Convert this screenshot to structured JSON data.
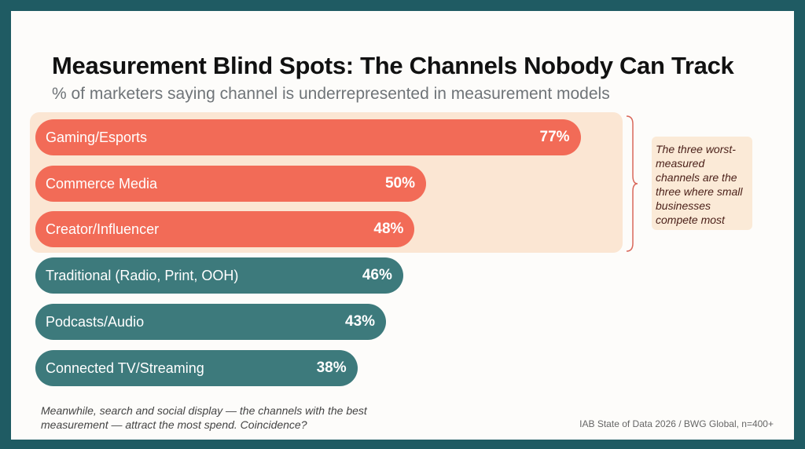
{
  "chart_data": {
    "type": "bar",
    "orientation": "horizontal",
    "title": "Measurement Blind Spots: The Channels Nobody Can Track",
    "subtitle": "% of marketers saying channel is underrepresented in measurement models",
    "categories": [
      "Gaming/Esports",
      "Commerce Media",
      "Creator/Influencer",
      "Traditional (Radio, Print, OOH)",
      "Podcasts/Audio",
      "Connected TV/Streaming"
    ],
    "values": [
      77,
      50,
      48,
      46,
      43,
      38
    ],
    "value_labels": [
      "77%",
      "50%",
      "48%",
      "46%",
      "43%",
      "38%"
    ],
    "highlighted": [
      true,
      true,
      true,
      false,
      false,
      false
    ],
    "colors": {
      "highlight": "#f26b57",
      "normal": "#3d7a7c",
      "highlight_bg": "#fbe6d3"
    },
    "annotation": "The three worst-measured channels are the three where small businesses compete most",
    "footnote": "Meanwhile, search and social display — the channels with the best measurement — attract the most spend. Coincidence?",
    "source": "IAB State of Data 2026 / BWG Global, n=400+"
  }
}
